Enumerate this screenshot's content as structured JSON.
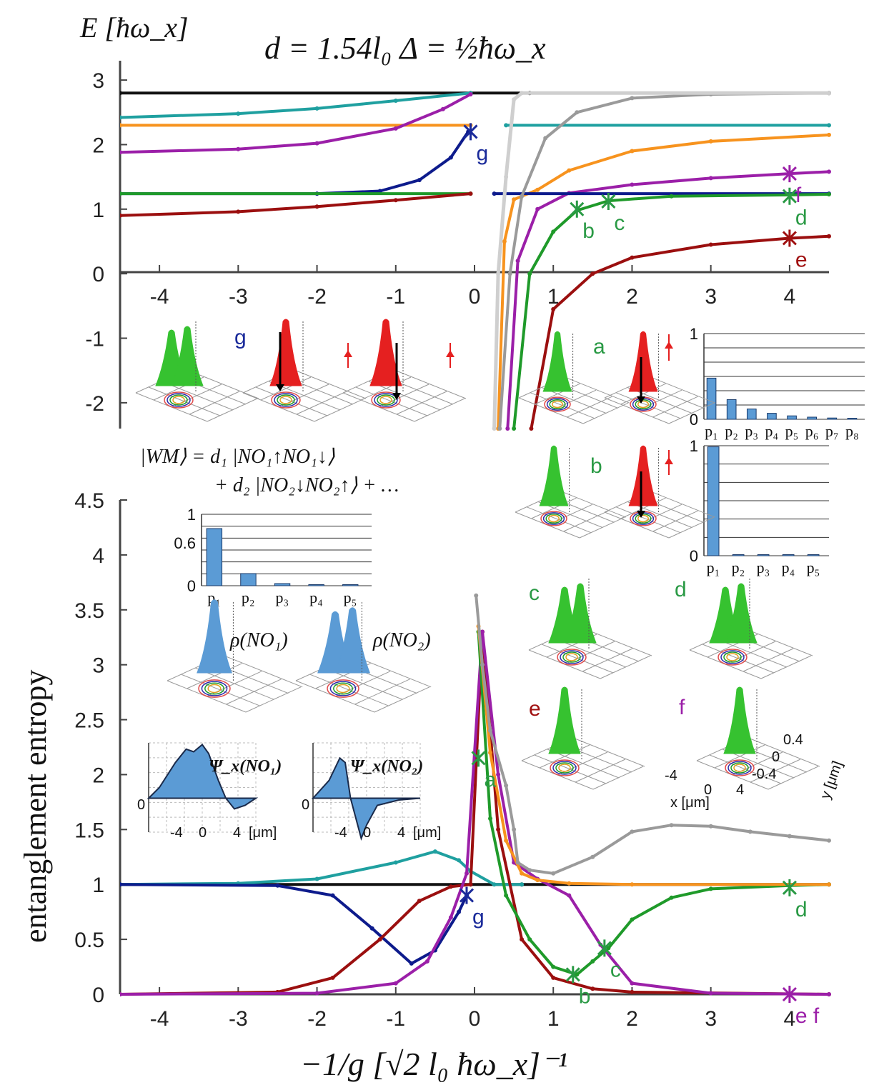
{
  "title": "d = 1.54l₀   Δ = ½ħω_x",
  "energy_axis_label": "E  [ħω_x]",
  "entropy_axis_label": "entanglement entropy",
  "x_axis_label": "−1/g   [√2 l₀ ħω_x]⁻¹",
  "state_formula": {
    "line1": "|WM⟩ = d₁ |NO₁↑NO₁↓⟩",
    "line2": "+ d₂ |NO₂↓NO₂↑⟩ + …"
  },
  "density_labels": [
    "ρ(NO₁)",
    "ρ(NO₂)"
  ],
  "wavefunction_labels": [
    "Ψ_x(NO₁)",
    "Ψ_x(NO₂)"
  ],
  "inset_axis": {
    "x_ticks": [
      "-4",
      "0",
      "4"
    ],
    "x_unit": "[μm]",
    "y_ticks": [
      "0.4",
      "0",
      "-0.4"
    ],
    "x_name": "x [μm]",
    "y_name": "y [μm]"
  },
  "point_labels": [
    "a",
    "b",
    "c",
    "d",
    "e",
    "f",
    "g"
  ],
  "colors": {
    "black": "#111111",
    "teal": "#1fa0a0",
    "orange": "#f7931e",
    "purple": "#9b1fa8",
    "navy": "#0d1b8c",
    "green": "#1f9a2a",
    "darkred": "#9b0f0f",
    "gray": "#9a9a9a",
    "lightgray": "#cfcfcf",
    "label_green": "#2a9a45",
    "label_navy": "#1a2a9a",
    "label_red": "#a01010",
    "label_purple": "#9b1fa8",
    "bar_blue": "#5b9bd5",
    "inset_green": "#36c230",
    "inset_red": "#e52020"
  },
  "chart_data": [
    {
      "type": "line",
      "name": "energy",
      "xlim": [
        -4.5,
        4.5
      ],
      "ylim": [
        -2.4,
        3.3
      ],
      "x_ticks": [
        -4,
        -3,
        -2,
        -1,
        0,
        1,
        2,
        3,
        4
      ],
      "y_ticks": [
        -2,
        -1,
        0,
        1,
        2,
        3
      ],
      "series": [
        {
          "color": "black",
          "points": [
            [
              -4.5,
              2.8
            ],
            [
              -0.05,
              2.8
            ],
            [
              0.7,
              2.8
            ],
            [
              4.5,
              2.8
            ]
          ]
        },
        {
          "color": "teal",
          "points": [
            [
              -4.5,
              2.42
            ],
            [
              -3,
              2.48
            ],
            [
              -2,
              2.56
            ],
            [
              -1,
              2.68
            ],
            [
              -0.05,
              2.8
            ],
            [
              0.4,
              2.3
            ],
            [
              4.5,
              2.3
            ]
          ]
        },
        {
          "color": "orange",
          "points": [
            [
              -4.5,
              2.3
            ],
            [
              -0.05,
              2.3
            ],
            [
              0.3,
              -2.4
            ],
            [
              0.38,
              0.5
            ],
            [
              0.5,
              1.15
            ],
            [
              0.8,
              1.3
            ],
            [
              1.2,
              1.6
            ],
            [
              2,
              1.9
            ],
            [
              3,
              2.05
            ],
            [
              4.5,
              2.15
            ]
          ]
        },
        {
          "color": "purple",
          "points": [
            [
              -4.5,
              1.88
            ],
            [
              -3,
              1.93
            ],
            [
              -2,
              2.02
            ],
            [
              -1,
              2.25
            ],
            [
              -0.4,
              2.55
            ],
            [
              -0.05,
              2.78
            ],
            [
              0.42,
              -2.4
            ],
            [
              0.55,
              0.2
            ],
            [
              0.8,
              1.0
            ],
            [
              1.2,
              1.25
            ],
            [
              2,
              1.38
            ],
            [
              3,
              1.48
            ],
            [
              4,
              1.55
            ],
            [
              4.5,
              1.58
            ]
          ]
        },
        {
          "color": "navy",
          "points": [
            [
              -4.5,
              1.24
            ],
            [
              -2,
              1.24
            ],
            [
              -1.2,
              1.28
            ],
            [
              -0.7,
              1.45
            ],
            [
              -0.3,
              1.8
            ],
            [
              -0.08,
              2.2
            ],
            [
              0.25,
              1.24
            ],
            [
              4.5,
              1.24
            ]
          ]
        },
        {
          "color": "green",
          "points": [
            [
              -4.5,
              1.24
            ],
            [
              -0.05,
              1.24
            ],
            [
              0.5,
              -2.4
            ],
            [
              0.7,
              0.0
            ],
            [
              1,
              0.65
            ],
            [
              1.3,
              0.98
            ],
            [
              1.7,
              1.13
            ],
            [
              2.5,
              1.2
            ],
            [
              4,
              1.22
            ],
            [
              4.5,
              1.23
            ]
          ]
        },
        {
          "color": "darkred",
          "points": [
            [
              -4.5,
              0.9
            ],
            [
              -3,
              0.96
            ],
            [
              -2,
              1.04
            ],
            [
              -1,
              1.14
            ],
            [
              -0.05,
              1.24
            ],
            [
              0.72,
              -2.4
            ],
            [
              1,
              -0.55
            ],
            [
              1.5,
              0.0
            ],
            [
              2,
              0.25
            ],
            [
              3,
              0.45
            ],
            [
              4,
              0.55
            ],
            [
              4.5,
              0.58
            ]
          ]
        },
        {
          "color": "gray",
          "points": [
            [
              0.32,
              -2.4
            ],
            [
              0.45,
              0.0
            ],
            [
              0.6,
              1.2
            ],
            [
              0.9,
              2.1
            ],
            [
              1.3,
              2.5
            ],
            [
              2,
              2.72
            ],
            [
              3,
              2.78
            ],
            [
              4.5,
              2.8
            ]
          ]
        },
        {
          "color": "lightgray",
          "points": [
            [
              0.25,
              -2.4
            ],
            [
              0.3,
              0.0
            ],
            [
              0.4,
              1.5
            ],
            [
              0.5,
              2.7
            ],
            [
              0.6,
              2.8
            ],
            [
              4.5,
              2.8
            ]
          ]
        }
      ],
      "markers": [
        {
          "label": "g",
          "x": -0.05,
          "y": 2.2,
          "color": "label_navy"
        },
        {
          "label": "b",
          "x": 1.3,
          "y": 1.0,
          "color": "label_green"
        },
        {
          "label": "c",
          "x": 1.7,
          "y": 1.12,
          "color": "label_green"
        },
        {
          "label": "d",
          "x": 4.0,
          "y": 1.2,
          "color": "label_green"
        },
        {
          "label": "f",
          "x": 4.0,
          "y": 1.55,
          "color": "label_purple"
        },
        {
          "label": "e",
          "x": 4.0,
          "y": 0.55,
          "color": "label_red"
        }
      ]
    },
    {
      "type": "line",
      "name": "entropy",
      "xlim": [
        -4.5,
        4.5
      ],
      "ylim": [
        0,
        4.5
      ],
      "x_ticks": [
        -4,
        -3,
        -2,
        -1,
        0,
        1,
        2,
        3,
        4
      ],
      "y_ticks": [
        0,
        0.5,
        1,
        1.5,
        2,
        2.5,
        3,
        3.5,
        4,
        4.5
      ],
      "y_tick_labels": [
        "0",
        "0.5",
        "1",
        "1.5",
        "2",
        "2.5",
        "3",
        "3.5",
        "4",
        "4.5"
      ],
      "series": [
        {
          "color": "black",
          "points": [
            [
              -4.5,
              1.0
            ],
            [
              -0.05,
              1.0
            ],
            [
              0.6,
              1.0
            ],
            [
              4.5,
              1.0
            ]
          ]
        },
        {
          "color": "teal",
          "points": [
            [
              -4.5,
              1.0
            ],
            [
              -3,
              1.01
            ],
            [
              -2,
              1.05
            ],
            [
              -1,
              1.2
            ],
            [
              -0.5,
              1.3
            ],
            [
              -0.2,
              1.22
            ],
            [
              -0.05,
              1.12
            ],
            [
              0.25,
              1.0
            ],
            [
              0.6,
              1.0
            ]
          ]
        },
        {
          "color": "navy",
          "points": [
            [
              -4.5,
              1.0
            ],
            [
              -2.5,
              0.99
            ],
            [
              -1.8,
              0.9
            ],
            [
              -1.3,
              0.6
            ],
            [
              -0.8,
              0.28
            ],
            [
              -0.5,
              0.4
            ],
            [
              -0.2,
              0.75
            ],
            [
              -0.1,
              0.9
            ]
          ]
        },
        {
          "color": "darkred",
          "points": [
            [
              -4.5,
              0.0
            ],
            [
              -2.5,
              0.02
            ],
            [
              -1.8,
              0.15
            ],
            [
              -1.2,
              0.5
            ],
            [
              -0.7,
              0.85
            ],
            [
              -0.3,
              0.98
            ],
            [
              -0.05,
              1.0
            ],
            [
              0.1,
              3.3
            ],
            [
              0.3,
              1.5
            ],
            [
              0.6,
              0.5
            ],
            [
              1,
              0.15
            ],
            [
              1.5,
              0.05
            ],
            [
              2,
              0.02
            ],
            [
              4.5,
              0.0
            ]
          ]
        },
        {
          "color": "purple",
          "points": [
            [
              -4.5,
              0.0
            ],
            [
              -2,
              0.01
            ],
            [
              -1,
              0.1
            ],
            [
              -0.6,
              0.3
            ],
            [
              -0.3,
              0.7
            ],
            [
              -0.1,
              1.1
            ],
            [
              0.1,
              3.3
            ],
            [
              0.3,
              2.0
            ],
            [
              0.5,
              1.2
            ],
            [
              0.8,
              1.05
            ],
            [
              1.2,
              0.9
            ],
            [
              1.6,
              0.45
            ],
            [
              2,
              0.1
            ],
            [
              3,
              0.01
            ],
            [
              4.5,
              0.0
            ]
          ]
        },
        {
          "color": "green",
          "points": [
            [
              0.05,
              3.3
            ],
            [
              0.2,
              1.6
            ],
            [
              0.4,
              0.9
            ],
            [
              0.7,
              0.5
            ],
            [
              1.0,
              0.25
            ],
            [
              1.3,
              0.18
            ],
            [
              1.5,
              0.3
            ],
            [
              1.7,
              0.42
            ],
            [
              2,
              0.68
            ],
            [
              2.5,
              0.88
            ],
            [
              3,
              0.96
            ],
            [
              4,
              0.99
            ],
            [
              4.5,
              1.0
            ]
          ]
        },
        {
          "color": "orange",
          "points": [
            [
              0.05,
              3.35
            ],
            [
              0.2,
              2.2
            ],
            [
              0.4,
              1.4
            ],
            [
              0.6,
              1.1
            ],
            [
              0.8,
              1.04
            ],
            [
              1.2,
              1.01
            ],
            [
              2,
              1.0
            ],
            [
              4.5,
              1.0
            ]
          ]
        },
        {
          "color": "gray",
          "points": [
            [
              0.02,
              3.63
            ],
            [
              0.1,
              3.0
            ],
            [
              0.2,
              2.4
            ],
            [
              0.4,
              1.9
            ],
            [
              0.5,
              1.5
            ],
            [
              0.55,
              1.2
            ],
            [
              0.7,
              1.13
            ],
            [
              1,
              1.1
            ],
            [
              1.5,
              1.25
            ],
            [
              2,
              1.48
            ],
            [
              2.5,
              1.54
            ],
            [
              3,
              1.53
            ],
            [
              3.5,
              1.48
            ],
            [
              4,
              1.44
            ],
            [
              4.5,
              1.4
            ]
          ]
        }
      ],
      "markers": [
        {
          "label": "g",
          "x": -0.1,
          "y": 0.9,
          "color": "label_navy"
        },
        {
          "label": "a",
          "x": 0.05,
          "y": 2.15,
          "color": "label_green"
        },
        {
          "label": "b",
          "x": 1.25,
          "y": 0.18,
          "color": "label_green"
        },
        {
          "label": "c",
          "x": 1.65,
          "y": 0.42,
          "color": "label_green"
        },
        {
          "label": "d",
          "x": 4.0,
          "y": 0.97,
          "color": "label_green"
        },
        {
          "label": "e f",
          "x": 4.0,
          "y": 0.0,
          "color": "label_purple"
        }
      ]
    },
    {
      "type": "bar",
      "name": "inset-occupations-main",
      "categories": [
        "p₁",
        "p₂",
        "p₃",
        "p₄",
        "p₅"
      ],
      "values": [
        0.8,
        0.17,
        0.03,
        0.005,
        0.002
      ],
      "y_ticks": [
        "0",
        "0.6",
        "1"
      ],
      "ylim": [
        0,
        1
      ]
    },
    {
      "type": "bar",
      "name": "inset-occupations-a",
      "categories": [
        "p₁",
        "p₂",
        "p₃",
        "p₄",
        "p₅",
        "p₆",
        "p₇",
        "p₈"
      ],
      "values": [
        0.48,
        0.23,
        0.12,
        0.07,
        0.04,
        0.025,
        0.015,
        0.01
      ],
      "y_ticks": [
        "0",
        "1"
      ],
      "ylim": [
        0,
        1
      ]
    },
    {
      "type": "bar",
      "name": "inset-occupations-b",
      "categories": [
        "p₁",
        "p₂",
        "p₃",
        "p₄",
        "p₅"
      ],
      "values": [
        0.99,
        0.005,
        0.002,
        0.001,
        0.001
      ],
      "y_ticks": [
        "0",
        "1"
      ],
      "ylim": [
        0,
        1
      ]
    }
  ]
}
